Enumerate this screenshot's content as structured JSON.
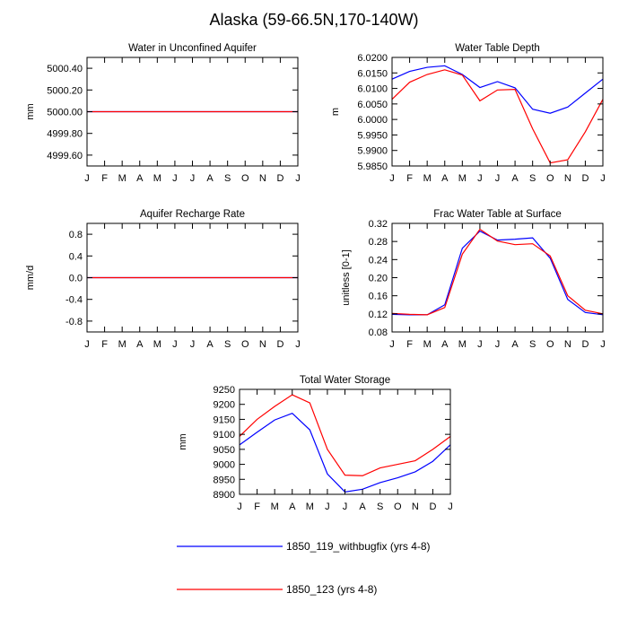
{
  "title": "Alaska (59-66.5N,170-140W)",
  "colors": {
    "series1": "#0000ff",
    "series2": "#ff0000"
  },
  "legend": [
    {
      "label": "1850_119_withbugfix (yrs 4-8)",
      "color": "#0000ff"
    },
    {
      "label": "1850_123 (yrs 4-8)",
      "color": "#ff0000"
    }
  ],
  "chart_data": [
    {
      "type": "line",
      "title": "Water in Unconfined Aquifer",
      "ylabel": "mm",
      "xlabel": "",
      "categories": [
        "J",
        "F",
        "M",
        "A",
        "M",
        "J",
        "J",
        "A",
        "S",
        "O",
        "N",
        "D",
        "J"
      ],
      "ylim": [
        4999.5,
        5000.5
      ],
      "yticks": [
        4999.6,
        4999.8,
        5000.0,
        5000.2,
        5000.4
      ],
      "ytick_labels": [
        "4999.60",
        "4999.80",
        "5000.00",
        "5000.20",
        "5000.40"
      ],
      "series": [
        {
          "name": "1850_119_withbugfix (yrs 4-8)",
          "color": "#0000ff",
          "values": [
            5000,
            5000,
            5000,
            5000,
            5000,
            5000,
            5000,
            5000,
            5000,
            5000,
            5000,
            5000,
            5000
          ]
        },
        {
          "name": "1850_123 (yrs 4-8)",
          "color": "#ff0000",
          "values": [
            5000,
            5000,
            5000,
            5000,
            5000,
            5000,
            5000,
            5000,
            5000,
            5000,
            5000,
            5000,
            5000
          ]
        }
      ]
    },
    {
      "type": "line",
      "title": "Water Table Depth",
      "ylabel": "m",
      "xlabel": "",
      "categories": [
        "J",
        "F",
        "M",
        "A",
        "M",
        "J",
        "J",
        "A",
        "S",
        "O",
        "N",
        "D",
        "J"
      ],
      "ylim": [
        5.985,
        6.02
      ],
      "yticks": [
        5.985,
        5.99,
        5.995,
        6.0,
        6.005,
        6.01,
        6.015,
        6.02
      ],
      "ytick_labels": [
        "5.9850",
        "5.9900",
        "5.9950",
        "6.0000",
        "6.0050",
        "6.0100",
        "6.0150",
        "6.0200"
      ],
      "series": [
        {
          "name": "1850_119_withbugfix (yrs 4-8)",
          "color": "#0000ff",
          "values": [
            6.013,
            6.0155,
            6.0168,
            6.0173,
            6.0145,
            6.0103,
            6.0122,
            6.0102,
            6.0033,
            6.002,
            6.004,
            6.0085,
            6.013
          ]
        },
        {
          "name": "1850_123 (yrs 4-8)",
          "color": "#ff0000",
          "values": [
            6.0065,
            6.012,
            6.0145,
            6.016,
            6.0143,
            6.006,
            6.0095,
            6.0097,
            5.997,
            5.986,
            5.987,
            5.996,
            6.0065
          ]
        }
      ]
    },
    {
      "type": "line",
      "title": "Aquifer Recharge Rate",
      "ylabel": "mm/d",
      "xlabel": "",
      "categories": [
        "J",
        "F",
        "M",
        "A",
        "M",
        "J",
        "J",
        "A",
        "S",
        "O",
        "N",
        "D",
        "J"
      ],
      "ylim": [
        -1.0,
        1.0
      ],
      "yticks": [
        -0.8,
        -0.4,
        0.0,
        0.4,
        0.8
      ],
      "ytick_labels": [
        "-0.8",
        "-0.4",
        "0.0",
        "0.4",
        "0.8"
      ],
      "series": [
        {
          "name": "1850_119_withbugfix (yrs 4-8)",
          "color": "#0000ff",
          "values": [
            0,
            0,
            0,
            0,
            0,
            0,
            0,
            0,
            0,
            0,
            0,
            0,
            0
          ]
        },
        {
          "name": "1850_123 (yrs 4-8)",
          "color": "#ff0000",
          "values": [
            0,
            0,
            0,
            0,
            0,
            0,
            0,
            0,
            0,
            0,
            0,
            0,
            0
          ]
        }
      ]
    },
    {
      "type": "line",
      "title": "Frac Water Table at Surface",
      "ylabel": "unitless [0-1]",
      "xlabel": "",
      "categories": [
        "J",
        "F",
        "M",
        "A",
        "M",
        "J",
        "J",
        "A",
        "S",
        "O",
        "N",
        "D",
        "J"
      ],
      "ylim": [
        0.08,
        0.32
      ],
      "yticks": [
        0.08,
        0.12,
        0.16,
        0.2,
        0.24,
        0.28,
        0.32
      ],
      "ytick_labels": [
        "0.08",
        "0.12",
        "0.16",
        "0.20",
        "0.24",
        "0.28",
        "0.32"
      ],
      "series": [
        {
          "name": "1850_119_withbugfix (yrs 4-8)",
          "color": "#0000ff",
          "values": [
            0.119,
            0.118,
            0.118,
            0.14,
            0.265,
            0.303,
            0.283,
            0.285,
            0.288,
            0.243,
            0.152,
            0.123,
            0.118
          ]
        },
        {
          "name": "1850_123 (yrs 4-8)",
          "color": "#ff0000",
          "values": [
            0.121,
            0.119,
            0.118,
            0.134,
            0.252,
            0.307,
            0.281,
            0.273,
            0.275,
            0.248,
            0.16,
            0.128,
            0.12
          ]
        }
      ]
    },
    {
      "type": "line",
      "title": "Total Water Storage",
      "ylabel": "mm",
      "xlabel": "",
      "categories": [
        "J",
        "F",
        "M",
        "A",
        "M",
        "J",
        "J",
        "A",
        "S",
        "O",
        "N",
        "D",
        "J"
      ],
      "ylim": [
        8900,
        9250
      ],
      "yticks": [
        8900,
        8950,
        9000,
        9050,
        9100,
        9150,
        9200,
        9250
      ],
      "ytick_labels": [
        "8900",
        "8950",
        "9000",
        "9050",
        "9100",
        "9150",
        "9200",
        "9250"
      ],
      "series": [
        {
          "name": "1850_119_withbugfix (yrs 4-8)",
          "color": "#0000ff",
          "values": [
            9065,
            9107,
            9148,
            9170,
            9115,
            8968,
            8908,
            8917,
            8939,
            8955,
            8975,
            9010,
            9065
          ]
        },
        {
          "name": "1850_123 (yrs 4-8)",
          "color": "#ff0000",
          "values": [
            9093,
            9150,
            9193,
            9232,
            9205,
            9050,
            8964,
            8962,
            8988,
            9000,
            9012,
            9050,
            9093
          ]
        }
      ]
    }
  ]
}
